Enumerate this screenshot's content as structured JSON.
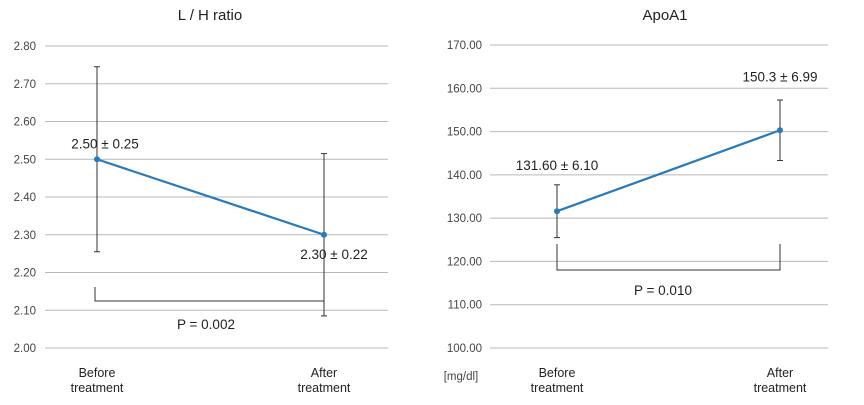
{
  "chart_data": [
    {
      "type": "line",
      "title": "L / H ratio",
      "ylim": [
        2.0,
        2.8
      ],
      "yticks": [
        "2.00",
        "2.10",
        "2.20",
        "2.30",
        "2.40",
        "2.50",
        "2.60",
        "2.70",
        "2.80"
      ],
      "grid": true,
      "categories": [
        [
          "Before",
          "treatment"
        ],
        [
          "After",
          "treatment"
        ]
      ],
      "series": [
        {
          "values": [
            2.5,
            2.3
          ],
          "errors": [
            0.245,
            0.215
          ],
          "labels": [
            "2.50 ± 0.25",
            "2.30 ± 0.22"
          ]
        }
      ],
      "significance": {
        "text": "P = 0.002",
        "position": "below"
      },
      "unit": ""
    },
    {
      "type": "line",
      "title": "ApoA1",
      "ylim": [
        100,
        170
      ],
      "yticks": [
        "100.00",
        "110.00",
        "120.00",
        "130.00",
        "140.00",
        "150.00",
        "160.00",
        "170.00"
      ],
      "grid": true,
      "categories": [
        [
          "Before",
          "treatment"
        ],
        [
          "After",
          "treatment"
        ]
      ],
      "series": [
        {
          "values": [
            131.6,
            150.3
          ],
          "errors": [
            6.1,
            6.99
          ],
          "labels": [
            "131.60 ± 6.10",
            "150.3 ± 6.99"
          ]
        }
      ],
      "significance": {
        "text": "P = 0.010",
        "position": "below"
      },
      "unit": "[mg/dl]"
    }
  ],
  "colors": {
    "series": "#2a7ab8",
    "grid": "#b8b8b8",
    "errorbar": "#333333"
  }
}
